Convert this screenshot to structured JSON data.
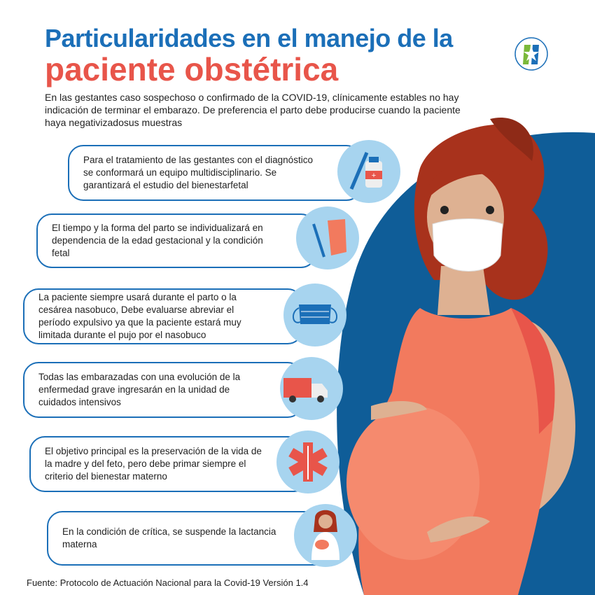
{
  "header": {
    "title_line1": "Particularidades en el manejo de la",
    "title_line2": "paciente obstétrica",
    "intro": "En las gestantes caso sospechoso o confirmado de la COVID-19, clínicamente estables no hay indicación de terminar el embarazo. De preferencia el parto debe producirse cuando la paciente haya negativizadosus muestras",
    "logo": "ministry-logo-star"
  },
  "items": [
    {
      "text": "Para el tratamiento de las gestantes con el diagnóstico se conformará un equipo multidisciplinario. Se garantizará el estudio del bienestarfetal",
      "icon": "syringe-vial-icon"
    },
    {
      "text": "El tiempo y la forma del parto se individualizará en dependencia de la edad gestacional y la condición fetal",
      "icon": "scalpel-gloves-icon"
    },
    {
      "text": "La paciente siempre usará durante el parto o la cesárea nasobuco, Debe evaluarse abreviar el período expulsivo ya que la paciente estará muy limitada durante el pujo por el nasobuco",
      "icon": "face-mask-icon"
    },
    {
      "text": "Todas las embarazadas con una evolución de la enfermedad grave ingresarán en la unidad de cuidados intensivos",
      "icon": "ambulance-icon"
    },
    {
      "text": "El objetivo principal es la preservación de la vida de la madre y del feto, pero debe primar siempre el criterio del bienestar materno",
      "icon": "star-of-life-icon"
    },
    {
      "text": "En la condición de crítica, se suspende la lactancia materna",
      "icon": "breastfeeding-mother-icon"
    }
  ],
  "footer": {
    "source": "Fuente:  Protocolo de Actuación Nacional para la Covid-19 Versión 1.4"
  },
  "colors": {
    "blue": "#1b6fb8",
    "dark_blue": "#0f5d98",
    "red": "#e8554a",
    "light_blue": "#a7d4ef",
    "dress": "#f27a5e",
    "hair": "#a8321c",
    "skin": "#deb192"
  }
}
